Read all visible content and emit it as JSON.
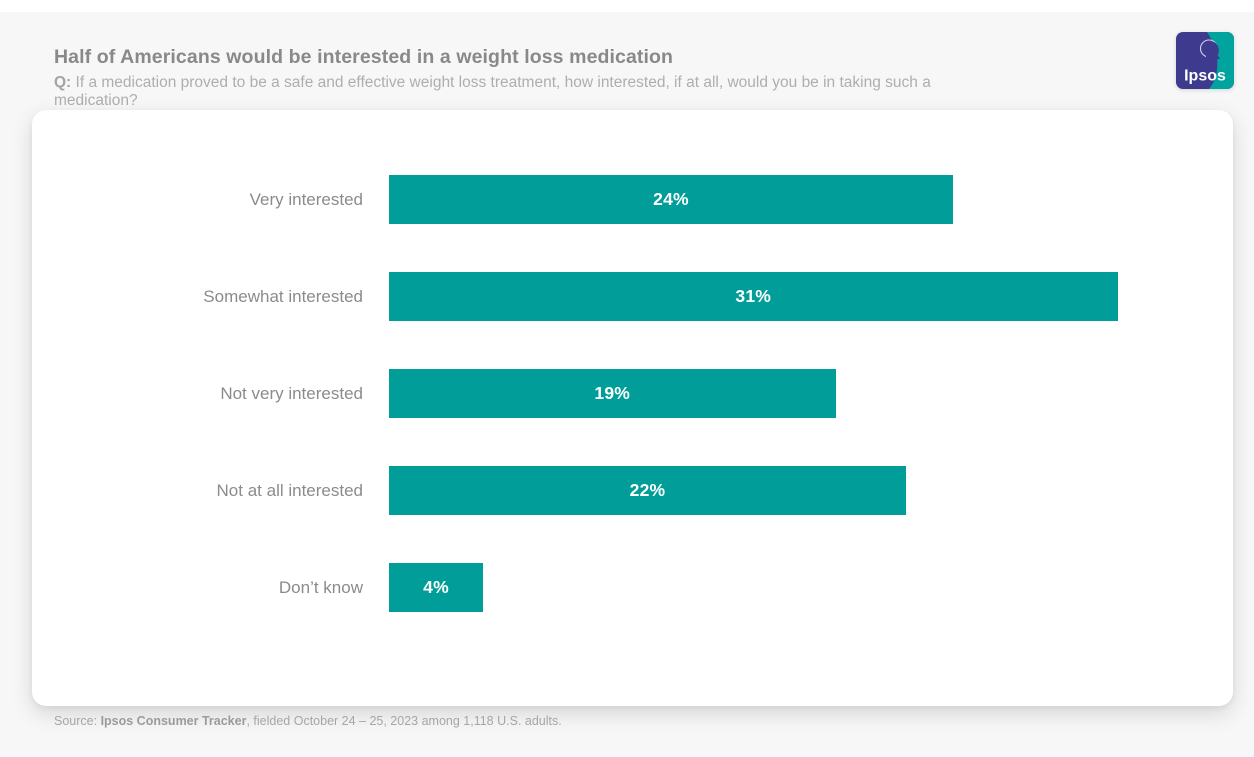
{
  "header": {
    "title": "Half of Americans would be interested in a weight loss medication",
    "question_prefix": "Q:",
    "question": " If a medication proved to be a safe and effective weight loss treatment, how interested, if at all, would you be in taking such a medication?"
  },
  "logo": {
    "text": "Ipsos",
    "purple": "#3e3b8e",
    "teal": "#00a39e"
  },
  "chart_data": {
    "type": "bar",
    "orientation": "horizontal",
    "title": "Half of Americans would be interested in a weight loss medication",
    "categories": [
      "Very interested",
      "Somewhat interested",
      "Not very interested",
      "Not at all interested",
      "Don’t know"
    ],
    "values": [
      24,
      31,
      19,
      22,
      4
    ],
    "value_labels": [
      "24%",
      "31%",
      "19%",
      "22%",
      "4%"
    ],
    "bar_color": "#009d99",
    "value_label_color": "#ffffff",
    "xlabel": "",
    "ylabel": "",
    "xlim": [
      0,
      35
    ],
    "grid": false,
    "legend": false
  },
  "source": {
    "prefix": "Source: ",
    "bold": "Ipsos Consumer Tracker",
    "rest": ", fielded October 24 – 25, 2023 among 1,118 U.S. adults."
  }
}
